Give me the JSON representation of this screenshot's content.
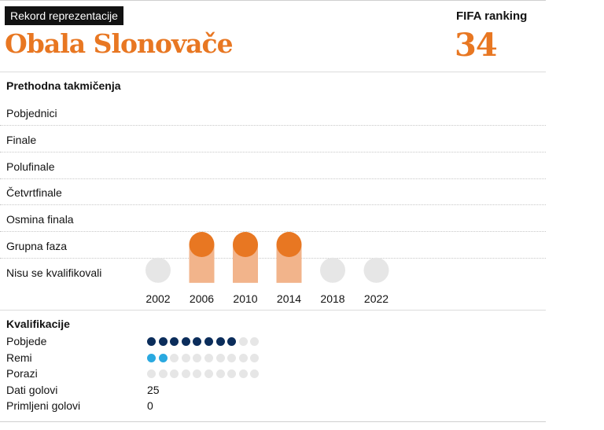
{
  "header": {
    "tag": "Rekord reprezentacije",
    "country": "Obala Slonovače",
    "fifa_label": "FIFA ranking",
    "fifa_value": "34"
  },
  "colors": {
    "accent": "#e87722",
    "accent_light": "#f2b48b",
    "inactive": "#e6e6e6",
    "wins": "#0b2d5b",
    "draws": "#2aa9e0"
  },
  "chart_data": {
    "type": "table",
    "title": "Prethodna takmičenja",
    "stages": [
      "Pobjednici",
      "Finale",
      "Polufinale",
      "Četvrtfinale",
      "Osmina finala",
      "Grupna faza",
      "Nisu se kvalifikovali"
    ],
    "years": [
      "2002",
      "2006",
      "2010",
      "2014",
      "2018",
      "2022"
    ],
    "results": [
      {
        "year": "2002",
        "stage": "Nisu se kvalifikovali"
      },
      {
        "year": "2006",
        "stage": "Grupna faza"
      },
      {
        "year": "2010",
        "stage": "Grupna faza"
      },
      {
        "year": "2014",
        "stage": "Grupna faza"
      },
      {
        "year": "2018",
        "stage": "Nisu se kvalifikovali"
      },
      {
        "year": "2022",
        "stage": "Nisu se kvalifikovali"
      }
    ]
  },
  "qualification": {
    "title": "Kvalifikacije",
    "total_matches": 10,
    "rows": [
      {
        "label": "Pobjede",
        "value": 8,
        "type": "dots",
        "color": "#0b2d5b"
      },
      {
        "label": "Remi",
        "value": 2,
        "type": "dots",
        "color": "#2aa9e0"
      },
      {
        "label": "Porazi",
        "value": 0,
        "type": "dots",
        "color": "#e6e6e6"
      },
      {
        "label": "Dati golovi",
        "value": "25",
        "type": "text"
      },
      {
        "label": "Primljeni golovi",
        "value": "0",
        "type": "text"
      }
    ]
  }
}
